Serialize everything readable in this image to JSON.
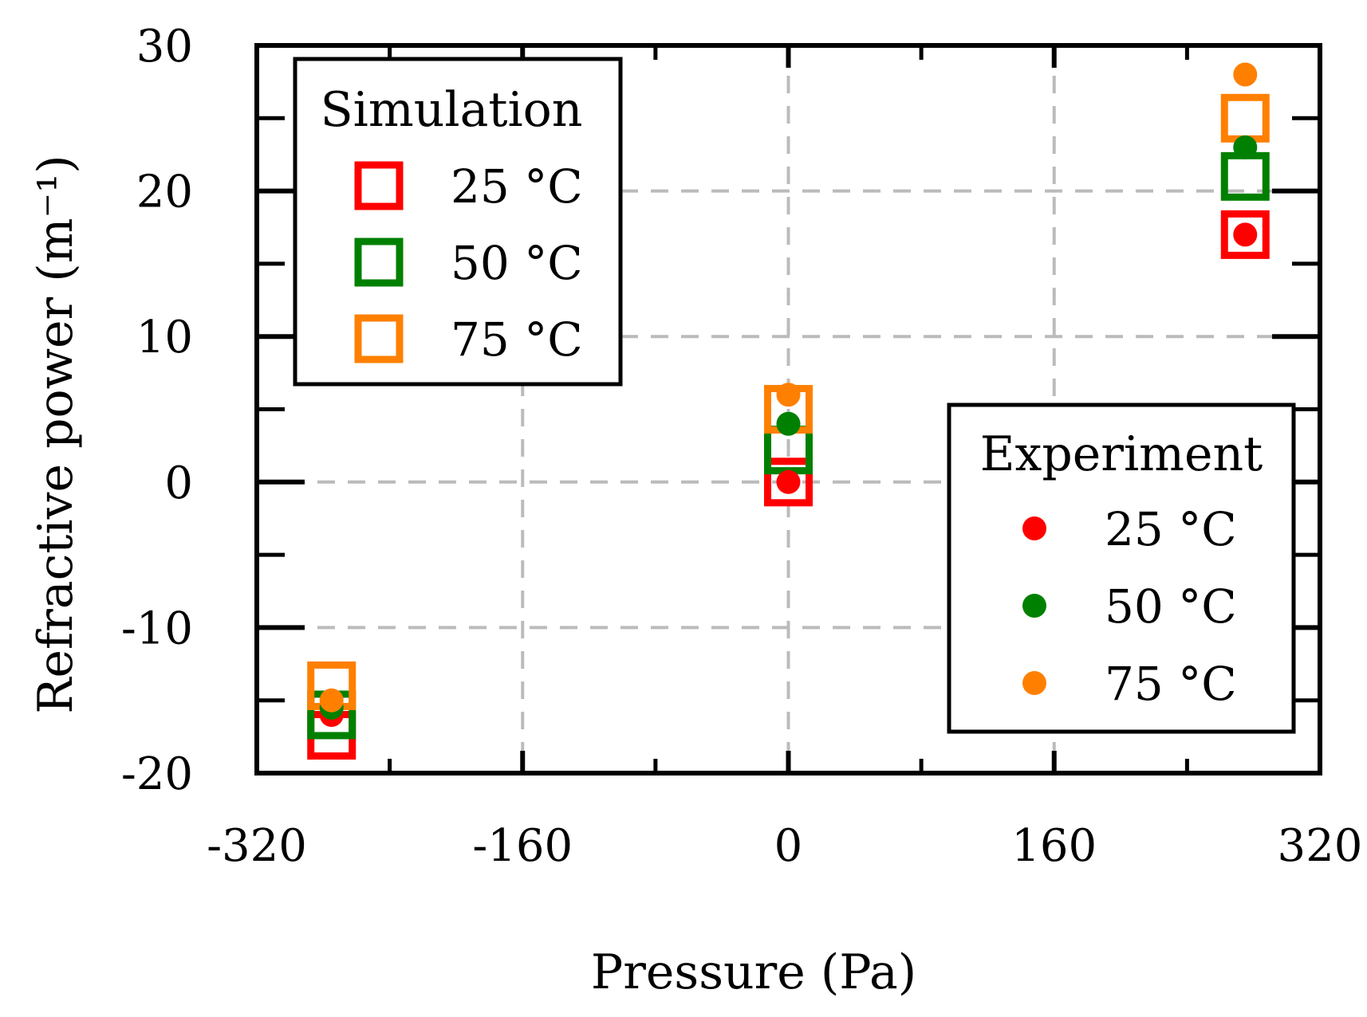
{
  "chart_data": {
    "type": "scatter",
    "title": "",
    "xlabel": "Pressure (Pa)",
    "ylabel": "Refractive power (m⁻¹)",
    "xlim": [
      -320,
      320
    ],
    "ylim": [
      -20,
      30
    ],
    "xticks": [
      -320,
      -160,
      0,
      160,
      320
    ],
    "yticks": [
      -20,
      -10,
      0,
      10,
      20,
      30
    ],
    "grid": true,
    "series": [
      {
        "name": "25 °C",
        "group": "Simulation",
        "marker": "open-square",
        "color": "#ff0000",
        "x": [
          -275,
          0,
          275
        ],
        "y": [
          -17.4,
          0,
          17
        ]
      },
      {
        "name": "50 °C",
        "group": "Simulation",
        "marker": "open-square",
        "color": "#008000",
        "x": [
          -275,
          0,
          275
        ],
        "y": [
          -16,
          2.2,
          21
        ]
      },
      {
        "name": "75 °C",
        "group": "Simulation",
        "marker": "open-square",
        "color": "#ff8000",
        "x": [
          -275,
          0,
          275
        ],
        "y": [
          -14,
          5,
          25
        ]
      },
      {
        "name": "25 °C",
        "group": "Experiment",
        "marker": "filled-circle",
        "color": "#ff0000",
        "x": [
          -275,
          0,
          275
        ],
        "y": [
          -16,
          0,
          17
        ]
      },
      {
        "name": "50 °C",
        "group": "Experiment",
        "marker": "filled-circle",
        "color": "#008000",
        "x": [
          -275,
          0,
          275
        ],
        "y": [
          -15.5,
          4,
          23
        ]
      },
      {
        "name": "75 °C",
        "group": "Experiment",
        "marker": "filled-circle",
        "color": "#ff8000",
        "x": [
          -275,
          0,
          275
        ],
        "y": [
          -15,
          6,
          28
        ]
      }
    ],
    "legends": [
      {
        "title": "Simulation",
        "placement": "top-left",
        "entries": [
          "25 °C",
          "50 °C",
          "75 °C"
        ]
      },
      {
        "title": "Experiment",
        "placement": "bottom-right",
        "entries": [
          "25 °C",
          "50 °C",
          "75 °C"
        ]
      }
    ]
  }
}
